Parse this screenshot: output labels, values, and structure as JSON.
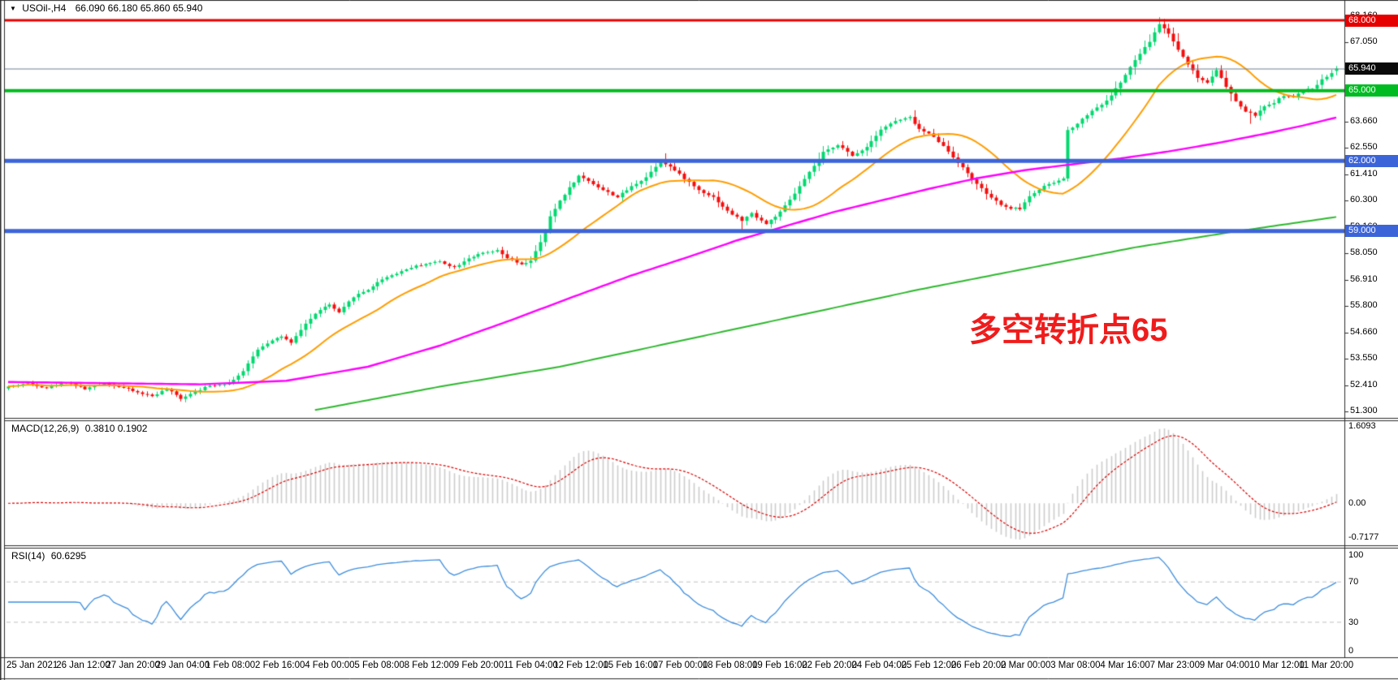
{
  "header": {
    "symbol": "USOil-,H4",
    "ohlc": "66.090 66.180 65.860 65.940",
    "collapse_icon": "triangle-down"
  },
  "chart_data": {
    "type": "candlestick+indicators",
    "symbol": "USOil-",
    "timeframe": "H4",
    "current_bar": {
      "open": "66.090",
      "high": "66.180",
      "low": "65.860",
      "close": "65.940"
    },
    "bar_count": 278,
    "colors": {
      "candle_up": "#00d96f",
      "candle_down": "#f50d0d",
      "ma_fast": "#ff9d00",
      "ma_mid": "#ff00ff",
      "ma_slow": "#2db82d",
      "level_red": "#e60000",
      "level_green": "#00bb22",
      "level_blue": "#3c64d9",
      "current_price_line": "#708090",
      "current_price_badge": "#0a0a0a",
      "macd_histogram": "#cccccc",
      "macd_signal": "#dd0000",
      "rsi_line": "#3e8ede",
      "rsi_levels_dash": "#c0c0c0",
      "annotation": "#ef1c1c"
    },
    "price_axis_ticks": [
      68.16,
      67.05,
      65.94,
      64.8,
      63.66,
      62.55,
      61.41,
      60.3,
      59.16,
      58.05,
      56.91,
      55.8,
      54.66,
      53.55,
      52.41,
      51.3
    ],
    "price_range": [
      51.05,
      68.35
    ],
    "time_labels": [
      "25 Jan 2021",
      "26 Jan 12:00",
      "27 Jan 20:00",
      "29 Jan 04:00",
      "1 Feb 08:00",
      "2 Feb 16:00",
      "4 Feb 00:00",
      "5 Feb 08:00",
      "8 Feb 12:00",
      "9 Feb 20:00",
      "11 Feb 04:00",
      "12 Feb 12:00",
      "15 Feb 16:00",
      "17 Feb 00:00",
      "18 Feb 08:00",
      "19 Feb 16:00",
      "22 Feb 20:00",
      "24 Feb 04:00",
      "25 Feb 12:00",
      "26 Feb 20:00",
      "2 Mar 00:00",
      "3 Mar 08:00",
      "4 Mar 16:00",
      "7 Mar 23:00",
      "9 Mar 04:00",
      "10 Mar 12:00",
      "11 Mar 20:00"
    ],
    "price_keyframes": [
      [
        0,
        52.35
      ],
      [
        4,
        52.5
      ],
      [
        8,
        52.3
      ],
      [
        12,
        52.55
      ],
      [
        16,
        52.25
      ],
      [
        20,
        52.5
      ],
      [
        24,
        52.3
      ],
      [
        27,
        52.1
      ],
      [
        30,
        51.95
      ],
      [
        33,
        52.25
      ],
      [
        36,
        51.85
      ],
      [
        39,
        52.15
      ],
      [
        42,
        52.4
      ],
      [
        46,
        52.5
      ],
      [
        49,
        53.0
      ],
      [
        52,
        53.95
      ],
      [
        55,
        54.35
      ],
      [
        57,
        54.5
      ],
      [
        59,
        54.2
      ],
      [
        62,
        55.05
      ],
      [
        65,
        55.65
      ],
      [
        67,
        55.85
      ],
      [
        69,
        55.5
      ],
      [
        72,
        56.2
      ],
      [
        75,
        56.5
      ],
      [
        78,
        56.95
      ],
      [
        81,
        57.2
      ],
      [
        84,
        57.45
      ],
      [
        87,
        57.6
      ],
      [
        90,
        57.7
      ],
      [
        93,
        57.45
      ],
      [
        96,
        57.85
      ],
      [
        99,
        58.05
      ],
      [
        102,
        58.15
      ],
      [
        104,
        57.85
      ],
      [
        107,
        57.55
      ],
      [
        109,
        57.75
      ],
      [
        111,
        58.5
      ],
      [
        113,
        59.6
      ],
      [
        115,
        60.3
      ],
      [
        117,
        60.85
      ],
      [
        119,
        61.35
      ],
      [
        121,
        61.15
      ],
      [
        124,
        60.75
      ],
      [
        127,
        60.45
      ],
      [
        130,
        60.9
      ],
      [
        133,
        61.3
      ],
      [
        136,
        62.0
      ],
      [
        138,
        61.75
      ],
      [
        141,
        61.25
      ],
      [
        144,
        60.75
      ],
      [
        147,
        60.45
      ],
      [
        150,
        59.85
      ],
      [
        153,
        59.45
      ],
      [
        155,
        59.75
      ],
      [
        158,
        59.3
      ],
      [
        161,
        59.8
      ],
      [
        164,
        60.6
      ],
      [
        167,
        61.5
      ],
      [
        170,
        62.35
      ],
      [
        173,
        62.7
      ],
      [
        176,
        62.2
      ],
      [
        179,
        62.6
      ],
      [
        182,
        63.35
      ],
      [
        185,
        63.7
      ],
      [
        188,
        63.85
      ],
      [
        190,
        63.35
      ],
      [
        193,
        63.05
      ],
      [
        196,
        62.4
      ],
      [
        199,
        61.7
      ],
      [
        202,
        61.0
      ],
      [
        205,
        60.4
      ],
      [
        208,
        60.0
      ],
      [
        211,
        59.95
      ],
      [
        213,
        60.5
      ],
      [
        216,
        60.9
      ],
      [
        219,
        61.15
      ],
      [
        220,
        61.25
      ],
      [
        221,
        63.3
      ],
      [
        223,
        63.6
      ],
      [
        226,
        64.15
      ],
      [
        229,
        64.55
      ],
      [
        232,
        65.35
      ],
      [
        235,
        66.3
      ],
      [
        238,
        67.1
      ],
      [
        240,
        67.85
      ],
      [
        242,
        67.45
      ],
      [
        244,
        66.75
      ],
      [
        246,
        66.15
      ],
      [
        248,
        65.55
      ],
      [
        250,
        65.35
      ],
      [
        252,
        65.9
      ],
      [
        254,
        65.15
      ],
      [
        256,
        64.55
      ],
      [
        258,
        64.1
      ],
      [
        260,
        63.95
      ],
      [
        262,
        64.3
      ],
      [
        264,
        64.5
      ],
      [
        266,
        64.8
      ],
      [
        268,
        64.7
      ],
      [
        270,
        65.0
      ],
      [
        272,
        65.1
      ],
      [
        274,
        65.45
      ],
      [
        277,
        65.94
      ]
    ],
    "wick_marks": [
      {
        "bar": 36,
        "low": 51.72
      },
      {
        "bar": 137,
        "high": 62.32
      },
      {
        "bar": 153,
        "low": 59.02
      },
      {
        "bar": 240,
        "high": 68.14
      },
      {
        "bar": 259,
        "low": 63.58
      }
    ],
    "ma_fast": {
      "name": "fast MA (orange)",
      "period": 20
    },
    "ma_mid_keyframes": [
      [
        0,
        52.55
      ],
      [
        40,
        52.45
      ],
      [
        58,
        52.6
      ],
      [
        75,
        53.2
      ],
      [
        90,
        54.1
      ],
      [
        105,
        55.2
      ],
      [
        118,
        56.2
      ],
      [
        130,
        57.1
      ],
      [
        142,
        57.9
      ],
      [
        152,
        58.6
      ],
      [
        162,
        59.2
      ],
      [
        172,
        59.8
      ],
      [
        182,
        60.3
      ],
      [
        192,
        60.8
      ],
      [
        202,
        61.25
      ],
      [
        212,
        61.6
      ],
      [
        222,
        61.85
      ],
      [
        232,
        62.1
      ],
      [
        242,
        62.4
      ],
      [
        252,
        62.75
      ],
      [
        262,
        63.15
      ],
      [
        270,
        63.5
      ],
      [
        277,
        63.85
      ]
    ],
    "ma_slow_keyframes": [
      [
        64,
        51.35
      ],
      [
        90,
        52.35
      ],
      [
        115,
        53.2
      ],
      [
        140,
        54.3
      ],
      [
        165,
        55.4
      ],
      [
        190,
        56.5
      ],
      [
        215,
        57.5
      ],
      [
        235,
        58.3
      ],
      [
        255,
        58.95
      ],
      [
        277,
        59.6
      ]
    ],
    "horizontal_levels": [
      {
        "price": 68.0,
        "label": "68.000",
        "color": "#e60000",
        "width": 3
      },
      {
        "price": 65.0,
        "label": "65.000",
        "color": "#00bb22",
        "width": 4
      },
      {
        "price": 62.0,
        "label": "62.000",
        "color": "#3c64d9",
        "width": 5
      },
      {
        "price": 59.0,
        "label": "59.000",
        "color": "#3c64d9",
        "width": 5
      }
    ],
    "current_price": {
      "value": 65.94,
      "label": "65.940"
    },
    "annotation": {
      "text": "多空转折点65"
    },
    "macd": {
      "label": "MACD(12,26,9)",
      "values": "0.3810 0.1902",
      "fast": 12,
      "slow": 26,
      "signal": 9,
      "axis_max": "1.6093",
      "axis_zero": "0.00",
      "axis_min": "-0.7177"
    },
    "rsi": {
      "label": "RSI(14)",
      "value": "60.6295",
      "period": 14,
      "axis_levels": [
        "100",
        "70",
        "30",
        "0"
      ],
      "dashed_levels": [
        70,
        30
      ]
    }
  }
}
